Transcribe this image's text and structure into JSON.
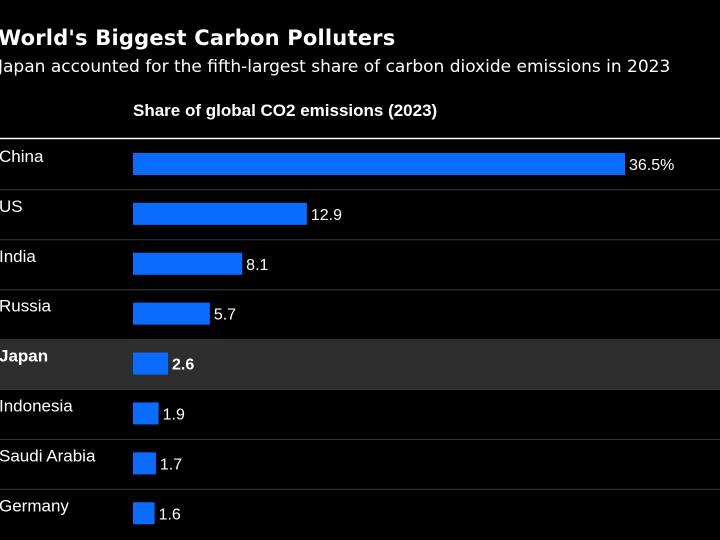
{
  "title": "World's Biggest Carbon Polluters",
  "subtitle": "Japan accounted for the fifth-largest share of carbon dioxide emissions in 2023",
  "colors": {
    "background": "#000000",
    "bar": "#0a6cff",
    "highlight_row": "#2e2e2e",
    "divider": "#3a3a3a",
    "text": "#ffffff"
  },
  "chart_data": {
    "type": "bar",
    "orientation": "horizontal",
    "column_header": "Share of global CO2 emissions (2023)",
    "categories": [
      "China",
      "US",
      "India",
      "Russia",
      "Japan",
      "Indonesia",
      "Saudi Arabia",
      "Germany"
    ],
    "values": [
      36.5,
      12.9,
      8.1,
      5.7,
      2.6,
      1.9,
      1.7,
      1.6
    ],
    "value_labels": [
      "36.5%",
      "12.9",
      "8.1",
      "5.7",
      "2.6",
      "1.9",
      "1.7",
      "1.6"
    ],
    "highlighted_category": "Japan",
    "xlim": [
      0,
      36.5
    ],
    "grid": false
  }
}
